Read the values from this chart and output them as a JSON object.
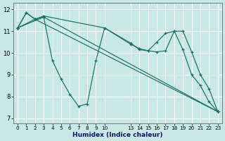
{
  "bg_color": "#c8e8e5",
  "grid_color": "#ffffff",
  "line_color": "#1a6e64",
  "xlabel": "Humidex (Indice chaleur)",
  "xlim": [
    -0.5,
    23.5
  ],
  "ylim": [
    6.75,
    12.3
  ],
  "yticks": [
    7,
    8,
    9,
    10,
    11,
    12
  ],
  "xtick_positions": [
    0,
    1,
    2,
    3,
    4,
    5,
    6,
    7,
    8,
    9,
    10,
    13,
    14,
    15,
    16,
    17,
    18,
    19,
    20,
    21,
    22,
    23
  ],
  "xtick_labels": [
    "0",
    "1",
    "2",
    "3",
    "4",
    "5",
    "6",
    "7",
    "8",
    "9",
    "10",
    "13",
    "14",
    "15",
    "16",
    "17",
    "18",
    "19",
    "20",
    "21",
    "22",
    "23"
  ],
  "series": [
    {
      "x": [
        0,
        1,
        2,
        3,
        4,
        5,
        6,
        7,
        8,
        9,
        10,
        13,
        14,
        15,
        16,
        17,
        18,
        19,
        20,
        21,
        22,
        23
      ],
      "y": [
        11.15,
        11.85,
        11.55,
        11.65,
        9.65,
        8.8,
        8.1,
        7.55,
        7.65,
        9.65,
        11.15,
        10.45,
        10.15,
        10.1,
        10.5,
        10.9,
        11.0,
        10.15,
        9.0,
        8.5,
        7.75,
        7.3
      ]
    },
    {
      "x": [
        0,
        1,
        2,
        3,
        10,
        13,
        14,
        15,
        16,
        17,
        18,
        19,
        20,
        21,
        22,
        23
      ],
      "y": [
        11.15,
        11.85,
        11.55,
        11.7,
        11.15,
        10.4,
        10.2,
        10.1,
        10.05,
        10.1,
        11.0,
        11.0,
        10.05,
        9.0,
        8.35,
        7.3
      ]
    },
    {
      "x": [
        0,
        2,
        23
      ],
      "y": [
        11.15,
        11.55,
        7.3
      ]
    },
    {
      "x": [
        0,
        3,
        23
      ],
      "y": [
        11.15,
        11.65,
        7.3
      ]
    }
  ]
}
